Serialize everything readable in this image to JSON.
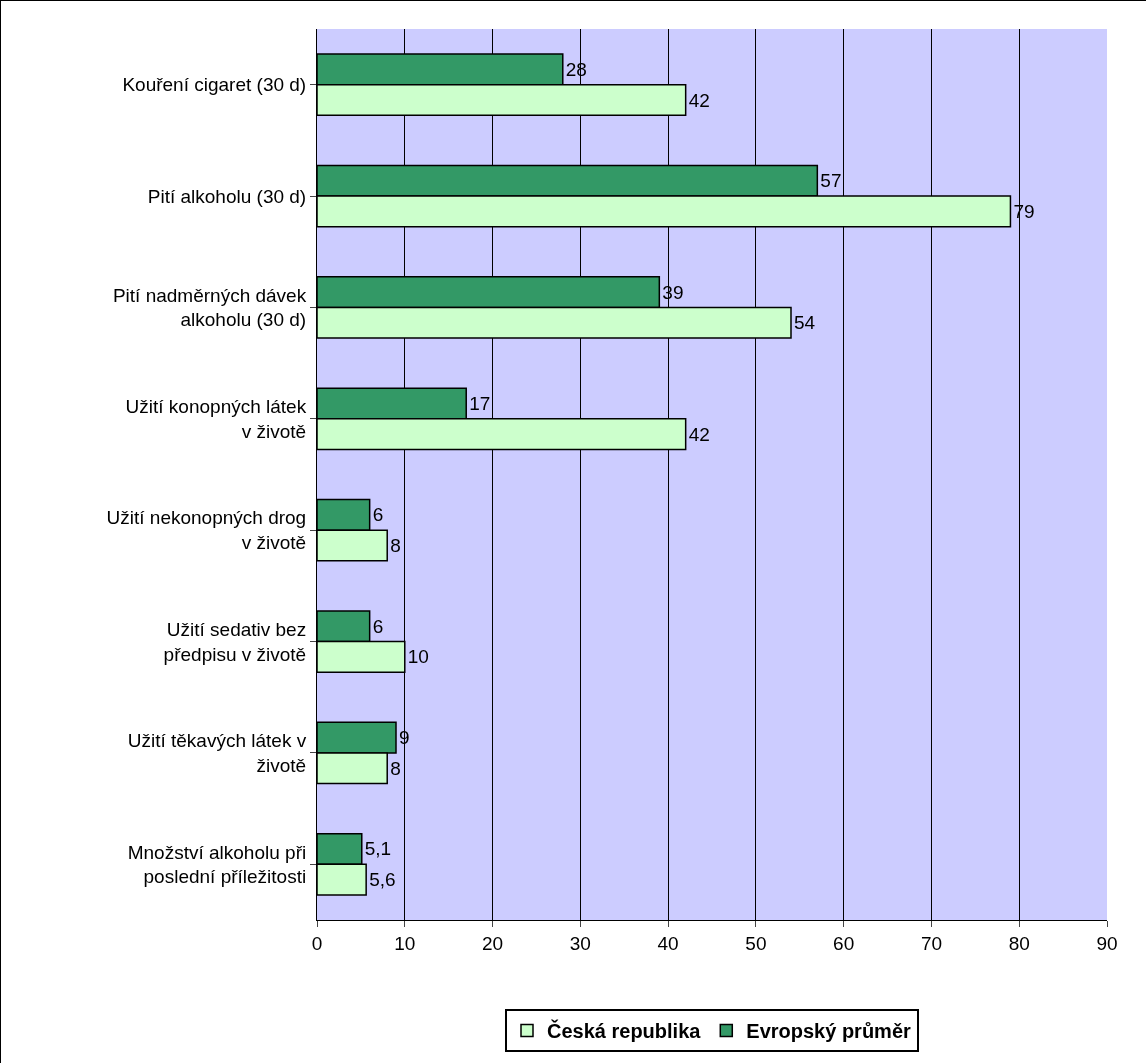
{
  "chart_data": {
    "type": "bar",
    "orientation": "horizontal",
    "categories": [
      "Kouření cigaret (30 d)",
      "Pití alkoholu (30 d)",
      "Pití nadměrných dávek alkoholu (30 d)",
      "Užití konopných látek v životě",
      "Užití nekonopných drog v životě",
      "Užití sedativ bez předpisu v životě",
      "Užití těkavých látek v životě",
      "Množství alkoholu při poslední příležitosti"
    ],
    "series": [
      {
        "name": "Evropský průměr",
        "color": "#339966",
        "values": [
          28,
          57,
          39,
          17,
          6,
          6,
          9,
          5.1
        ],
        "value_labels": [
          "28",
          "57",
          "39",
          "17",
          "6",
          "6",
          "9",
          "5,1"
        ]
      },
      {
        "name": "Česká republika",
        "color": "#ccffcc",
        "values": [
          42,
          79,
          54,
          42,
          8,
          10,
          8,
          5.6
        ],
        "value_labels": [
          "42",
          "79",
          "54",
          "42",
          "8",
          "10",
          "8",
          "5,6"
        ]
      }
    ],
    "xlim": [
      0,
      90
    ],
    "xticks": [
      0,
      10,
      20,
      30,
      40,
      50,
      60,
      70,
      80,
      90
    ],
    "grid": "x",
    "legend": "bottom"
  }
}
